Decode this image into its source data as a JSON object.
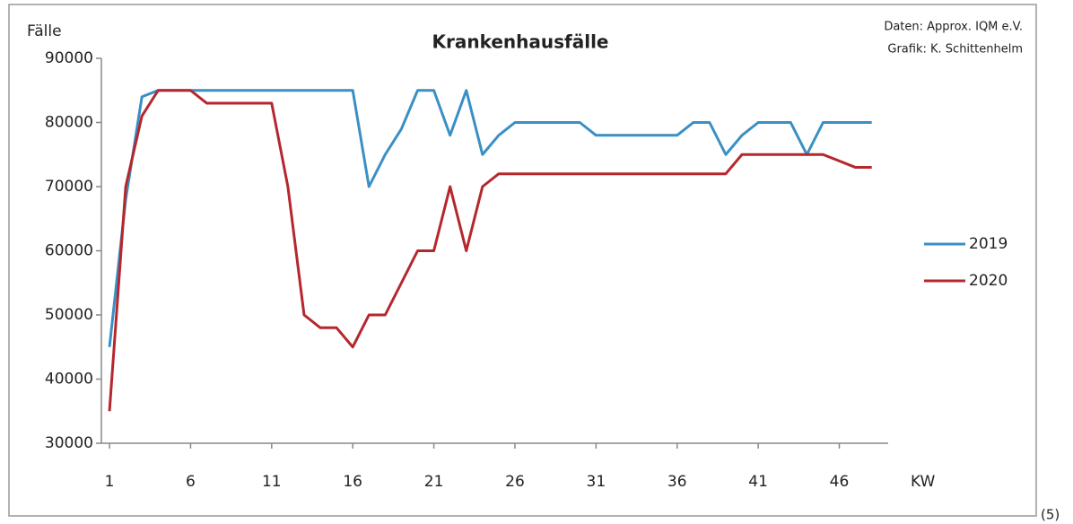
{
  "chart_data": {
    "type": "line",
    "title": "Krankenhausfälle",
    "y_label": "Fälle",
    "x_label": "KW",
    "annotations": [
      "Daten: Approx. IQM e.V.",
      "Grafik: K. Schittenhelm"
    ],
    "footnote": "(5)",
    "x": [
      1,
      2,
      3,
      4,
      5,
      6,
      7,
      8,
      9,
      10,
      11,
      12,
      13,
      14,
      15,
      16,
      17,
      18,
      19,
      20,
      21,
      22,
      23,
      24,
      25,
      26,
      27,
      28,
      29,
      30,
      31,
      32,
      33,
      34,
      35,
      36,
      37,
      38,
      39,
      40,
      41,
      42,
      43,
      44,
      45,
      46,
      47,
      48
    ],
    "series": [
      {
        "name": "2019",
        "color": "#3a8fc5",
        "values": [
          45000,
          68000,
          84000,
          85000,
          85000,
          85000,
          85000,
          85000,
          85000,
          85000,
          85000,
          85000,
          85000,
          85000,
          85000,
          85000,
          70000,
          75000,
          79000,
          85000,
          85000,
          78000,
          85000,
          75000,
          78000,
          80000,
          80000,
          80000,
          80000,
          80000,
          78000,
          78000,
          78000,
          78000,
          78000,
          78000,
          80000,
          80000,
          75000,
          78000,
          80000,
          80000,
          80000,
          75000,
          80000,
          80000,
          80000,
          80000
        ]
      },
      {
        "name": "2020",
        "color": "#b5272d",
        "values": [
          35000,
          70000,
          81000,
          85000,
          85000,
          85000,
          83000,
          83000,
          83000,
          83000,
          83000,
          70000,
          50000,
          48000,
          48000,
          45000,
          50000,
          50000,
          55000,
          60000,
          60000,
          70000,
          60000,
          70000,
          72000,
          72000,
          72000,
          72000,
          72000,
          72000,
          72000,
          72000,
          72000,
          72000,
          72000,
          72000,
          72000,
          72000,
          72000,
          75000,
          75000,
          75000,
          75000,
          75000,
          75000,
          74000,
          73000,
          73000
        ]
      }
    ],
    "xlim": [
      0.5,
      48.5
    ],
    "xticks": [
      1,
      6,
      11,
      16,
      21,
      26,
      31,
      36,
      41,
      46
    ],
    "ylim": [
      30000,
      90000
    ],
    "yticks": [
      30000,
      40000,
      50000,
      60000,
      70000,
      80000,
      90000
    ],
    "legend": "right"
  }
}
